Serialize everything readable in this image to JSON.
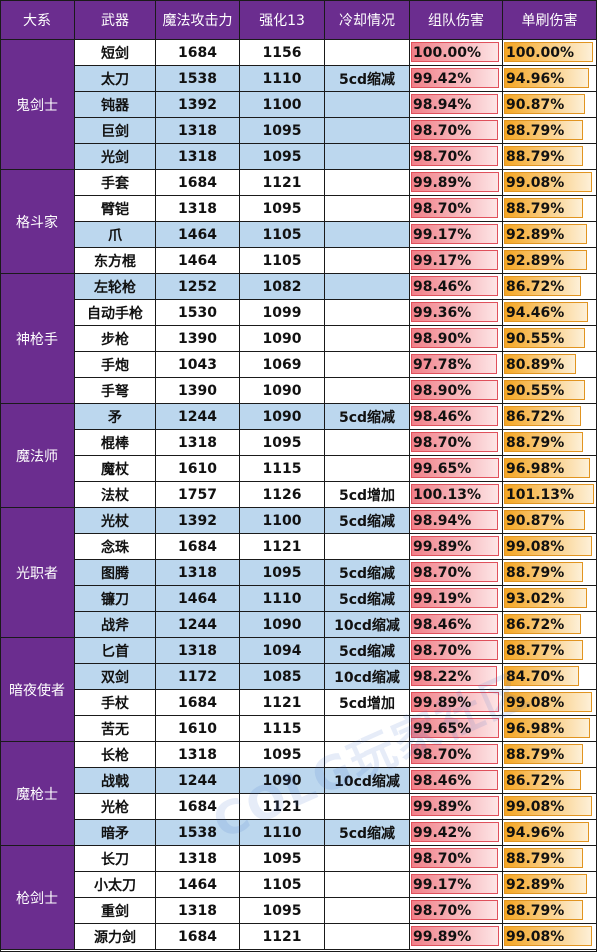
{
  "headers": [
    "大系",
    "武器",
    "魔法攻击力",
    "强化13",
    "冷却情况",
    "组队伤害",
    "单刷伤害"
  ],
  "colors": {
    "header_bg": "#6b2d8f",
    "row_blue": "#bcd7ee",
    "team_bar": "#f07f88",
    "solo_bar": "#f5a623"
  },
  "bar_scale_max": 1.0226,
  "watermark_text": "COLG玩家社区",
  "groups": [
    {
      "name": "鬼剑士",
      "rows": [
        {
          "weapon": "短剑",
          "matk": "1684",
          "enh13": "1156",
          "cooldown": "",
          "team": "100.00%",
          "solo": "100.00%",
          "bg": "white"
        },
        {
          "weapon": "太刀",
          "matk": "1538",
          "enh13": "1110",
          "cooldown": "5cd缩减",
          "team": "99.42%",
          "solo": "94.96%",
          "bg": "blue"
        },
        {
          "weapon": "钝器",
          "matk": "1392",
          "enh13": "1100",
          "cooldown": "",
          "team": "98.94%",
          "solo": "90.87%",
          "bg": "blue"
        },
        {
          "weapon": "巨剑",
          "matk": "1318",
          "enh13": "1095",
          "cooldown": "",
          "team": "98.70%",
          "solo": "88.79%",
          "bg": "blue"
        },
        {
          "weapon": "光剑",
          "matk": "1318",
          "enh13": "1095",
          "cooldown": "",
          "team": "98.70%",
          "solo": "88.79%",
          "bg": "blue"
        }
      ]
    },
    {
      "name": "格斗家",
      "rows": [
        {
          "weapon": "手套",
          "matk": "1684",
          "enh13": "1121",
          "cooldown": "",
          "team": "99.89%",
          "solo": "99.08%",
          "bg": "white"
        },
        {
          "weapon": "臂铠",
          "matk": "1318",
          "enh13": "1095",
          "cooldown": "",
          "team": "98.70%",
          "solo": "88.79%",
          "bg": "white"
        },
        {
          "weapon": "爪",
          "matk": "1464",
          "enh13": "1105",
          "cooldown": "",
          "team": "99.17%",
          "solo": "92.89%",
          "bg": "blue"
        },
        {
          "weapon": "东方棍",
          "matk": "1464",
          "enh13": "1105",
          "cooldown": "",
          "team": "99.17%",
          "solo": "92.89%",
          "bg": "white"
        }
      ]
    },
    {
      "name": "神枪手",
      "rows": [
        {
          "weapon": "左轮枪",
          "matk": "1252",
          "enh13": "1082",
          "cooldown": "",
          "team": "98.46%",
          "solo": "86.72%",
          "bg": "blue"
        },
        {
          "weapon": "自动手枪",
          "matk": "1530",
          "enh13": "1099",
          "cooldown": "",
          "team": "99.36%",
          "solo": "94.46%",
          "bg": "white"
        },
        {
          "weapon": "步枪",
          "matk": "1390",
          "enh13": "1090",
          "cooldown": "",
          "team": "98.90%",
          "solo": "90.55%",
          "bg": "white"
        },
        {
          "weapon": "手炮",
          "matk": "1043",
          "enh13": "1069",
          "cooldown": "",
          "team": "97.78%",
          "solo": "80.89%",
          "bg": "white"
        },
        {
          "weapon": "手弩",
          "matk": "1390",
          "enh13": "1090",
          "cooldown": "",
          "team": "98.90%",
          "solo": "90.55%",
          "bg": "white"
        }
      ]
    },
    {
      "name": "魔法师",
      "rows": [
        {
          "weapon": "矛",
          "matk": "1244",
          "enh13": "1090",
          "cooldown": "5cd缩减",
          "team": "98.46%",
          "solo": "86.72%",
          "bg": "blue"
        },
        {
          "weapon": "棍棒",
          "matk": "1318",
          "enh13": "1095",
          "cooldown": "",
          "team": "98.70%",
          "solo": "88.79%",
          "bg": "white"
        },
        {
          "weapon": "魔杖",
          "matk": "1610",
          "enh13": "1115",
          "cooldown": "",
          "team": "99.65%",
          "solo": "96.98%",
          "bg": "white"
        },
        {
          "weapon": "法杖",
          "matk": "1757",
          "enh13": "1126",
          "cooldown": "5cd增加",
          "team": "100.13%",
          "solo": "101.13%",
          "bg": "white"
        }
      ]
    },
    {
      "name": "光职者",
      "rows": [
        {
          "weapon": "光杖",
          "matk": "1392",
          "enh13": "1100",
          "cooldown": "5cd缩减",
          "team": "98.94%",
          "solo": "90.87%",
          "bg": "blue"
        },
        {
          "weapon": "念珠",
          "matk": "1684",
          "enh13": "1121",
          "cooldown": "",
          "team": "99.89%",
          "solo": "99.08%",
          "bg": "white"
        },
        {
          "weapon": "图腾",
          "matk": "1318",
          "enh13": "1095",
          "cooldown": "5cd缩减",
          "team": "98.70%",
          "solo": "88.79%",
          "bg": "blue"
        },
        {
          "weapon": "镰刀",
          "matk": "1464",
          "enh13": "1110",
          "cooldown": "5cd缩减",
          "team": "99.19%",
          "solo": "93.02%",
          "bg": "blue"
        },
        {
          "weapon": "战斧",
          "matk": "1244",
          "enh13": "1090",
          "cooldown": "10cd缩减",
          "team": "98.46%",
          "solo": "86.72%",
          "bg": "blue"
        }
      ]
    },
    {
      "name": "暗夜使者",
      "rows": [
        {
          "weapon": "匕首",
          "matk": "1318",
          "enh13": "1094",
          "cooldown": "5cd缩减",
          "team": "98.70%",
          "solo": "88.77%",
          "bg": "blue"
        },
        {
          "weapon": "双剑",
          "matk": "1172",
          "enh13": "1085",
          "cooldown": "10cd缩减",
          "team": "98.22%",
          "solo": "84.70%",
          "bg": "blue"
        },
        {
          "weapon": "手杖",
          "matk": "1684",
          "enh13": "1121",
          "cooldown": "5cd增加",
          "team": "99.89%",
          "solo": "99.08%",
          "bg": "white"
        },
        {
          "weapon": "苦无",
          "matk": "1610",
          "enh13": "1115",
          "cooldown": "",
          "team": "99.65%",
          "solo": "96.98%",
          "bg": "white"
        }
      ]
    },
    {
      "name": "魔枪士",
      "rows": [
        {
          "weapon": "长枪",
          "matk": "1318",
          "enh13": "1095",
          "cooldown": "",
          "team": "98.70%",
          "solo": "88.79%",
          "bg": "white"
        },
        {
          "weapon": "战戟",
          "matk": "1244",
          "enh13": "1090",
          "cooldown": "10cd缩减",
          "team": "98.46%",
          "solo": "86.72%",
          "bg": "blue"
        },
        {
          "weapon": "光枪",
          "matk": "1684",
          "enh13": "1121",
          "cooldown": "",
          "team": "99.89%",
          "solo": "99.08%",
          "bg": "white"
        },
        {
          "weapon": "暗矛",
          "matk": "1538",
          "enh13": "1110",
          "cooldown": "5cd缩减",
          "team": "99.42%",
          "solo": "94.96%",
          "bg": "blue"
        }
      ]
    },
    {
      "name": "枪剑士",
      "rows": [
        {
          "weapon": "长刀",
          "matk": "1318",
          "enh13": "1095",
          "cooldown": "",
          "team": "98.70%",
          "solo": "88.79%",
          "bg": "white"
        },
        {
          "weapon": "小太刀",
          "matk": "1464",
          "enh13": "1105",
          "cooldown": "",
          "team": "99.17%",
          "solo": "92.89%",
          "bg": "white"
        },
        {
          "weapon": "重剑",
          "matk": "1318",
          "enh13": "1095",
          "cooldown": "",
          "team": "98.70%",
          "solo": "88.79%",
          "bg": "white"
        },
        {
          "weapon": "源力剑",
          "matk": "1684",
          "enh13": "1121",
          "cooldown": "",
          "team": "99.89%",
          "solo": "99.08%",
          "bg": "white"
        }
      ]
    }
  ]
}
